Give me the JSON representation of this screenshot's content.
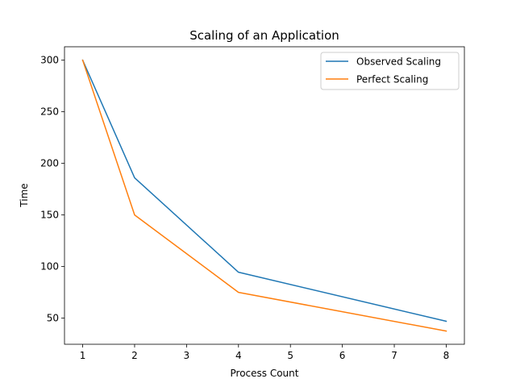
{
  "chart_data": {
    "type": "line",
    "title": "Scaling of an Application",
    "xlabel": "Process Count",
    "ylabel": "Time",
    "x": [
      1,
      2,
      4,
      8
    ],
    "xlim": [
      0.65,
      8.35
    ],
    "ylim": [
      24.7,
      313.0
    ],
    "xticks": [
      1,
      2,
      3,
      4,
      5,
      6,
      7,
      8
    ],
    "yticks": [
      50,
      100,
      150,
      200,
      250,
      300
    ],
    "grid": false,
    "legend_position": "top-right",
    "series": [
      {
        "name": "Observed Scaling",
        "color": "#1f77b4",
        "values": [
          300,
          186,
          94.5,
          47
        ]
      },
      {
        "name": "Perfect Scaling",
        "color": "#ff7f0e",
        "values": [
          300,
          150,
          75,
          37.5
        ]
      }
    ]
  }
}
